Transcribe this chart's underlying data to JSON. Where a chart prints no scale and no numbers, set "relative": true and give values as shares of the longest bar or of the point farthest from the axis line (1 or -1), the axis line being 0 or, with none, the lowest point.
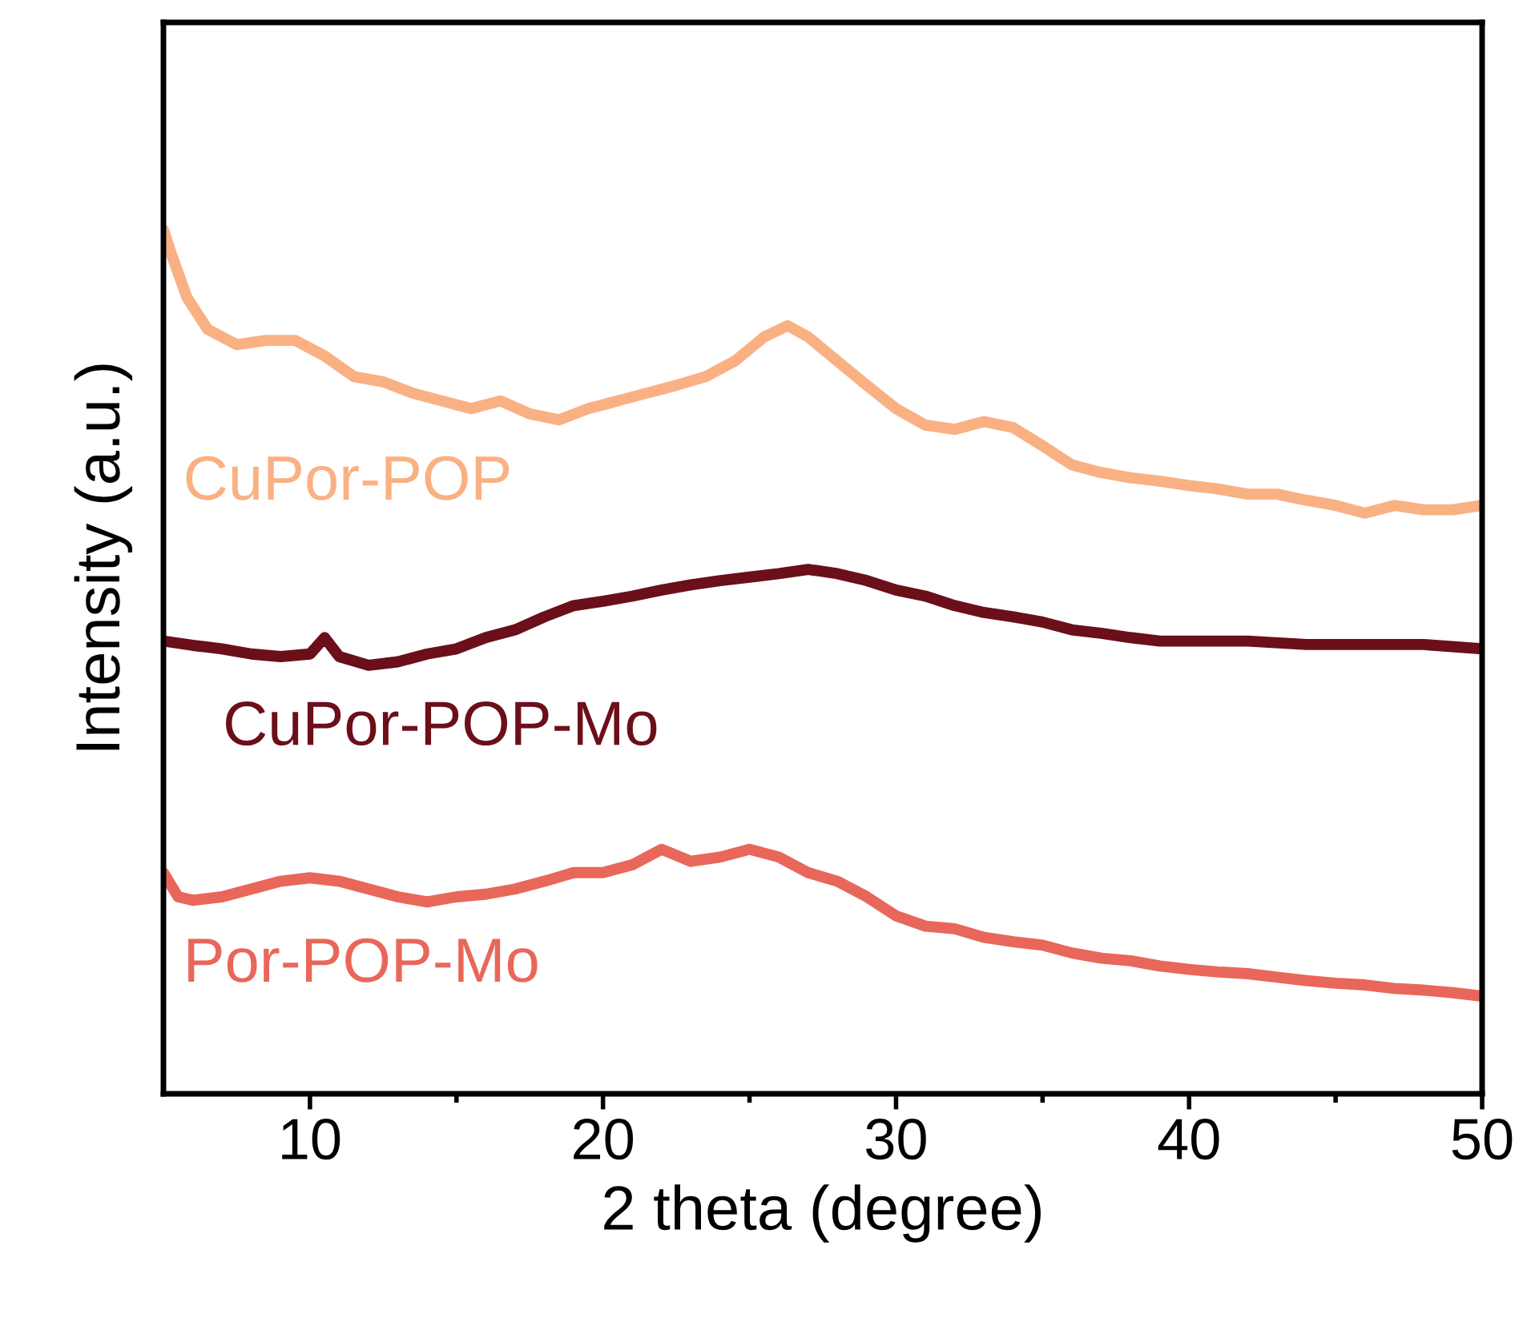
{
  "chart_data": {
    "type": "line",
    "xlabel": "2 theta (degree)",
    "ylabel": "Intensity (a.u.)",
    "relative": true,
    "xlim": [
      5,
      50
    ],
    "xticks": [
      10,
      20,
      30,
      40,
      50
    ],
    "grid": false,
    "legend": false,
    "marker": "none",
    "line_style": "solid",
    "series": [
      {
        "name": "CuPor-POP",
        "color": "#f9b183",
        "x": [
          5,
          5.3,
          5.8,
          6.5,
          7.5,
          8.5,
          9.5,
          10.5,
          11.5,
          12.5,
          13.5,
          14.5,
          15.5,
          16.5,
          17.5,
          18.5,
          19.5,
          20.5,
          21.5,
          22.5,
          23.5,
          24.5,
          25.5,
          26.3,
          27,
          28,
          29,
          30,
          31,
          32,
          33,
          34,
          35,
          36,
          37,
          38,
          39,
          40,
          41,
          42,
          43,
          44,
          45,
          46,
          47,
          48,
          49,
          50
        ],
        "values": [
          1.0,
          0.969,
          0.922,
          0.885,
          0.867,
          0.872,
          0.872,
          0.854,
          0.83,
          0.824,
          0.811,
          0.802,
          0.793,
          0.802,
          0.787,
          0.78,
          0.793,
          0.802,
          0.811,
          0.82,
          0.83,
          0.848,
          0.876,
          0.889,
          0.876,
          0.848,
          0.82,
          0.793,
          0.774,
          0.769,
          0.778,
          0.771,
          0.75,
          0.728,
          0.719,
          0.713,
          0.709,
          0.704,
          0.7,
          0.694,
          0.694,
          0.687,
          0.681,
          0.672,
          0.681,
          0.676,
          0.676,
          0.681
        ]
      },
      {
        "name": "CuPor-POP-Mo",
        "color": "#6b0f1a",
        "x": [
          5,
          6,
          7,
          8,
          9,
          10,
          10.5,
          11,
          12,
          13,
          14,
          15,
          16,
          17,
          18,
          19,
          20,
          21,
          22,
          23,
          24,
          25,
          26,
          27,
          28,
          29,
          30,
          31,
          32,
          33,
          34,
          35,
          36,
          37,
          38,
          39,
          40,
          42,
          44,
          46,
          48,
          50
        ],
        "values": [
          0.524,
          0.519,
          0.515,
          0.509,
          0.506,
          0.509,
          0.528,
          0.506,
          0.496,
          0.5,
          0.509,
          0.515,
          0.528,
          0.537,
          0.552,
          0.565,
          0.57,
          0.576,
          0.583,
          0.589,
          0.594,
          0.598,
          0.602,
          0.607,
          0.602,
          0.594,
          0.583,
          0.576,
          0.565,
          0.557,
          0.552,
          0.546,
          0.537,
          0.533,
          0.528,
          0.524,
          0.524,
          0.524,
          0.52,
          0.52,
          0.52,
          0.515
        ]
      },
      {
        "name": "Por-POP-Mo",
        "color": "#e8675a",
        "x": [
          5,
          5.5,
          6,
          7,
          8,
          9,
          10,
          11,
          12,
          13,
          14,
          15,
          16,
          17,
          18,
          19,
          20,
          21,
          22,
          23,
          24,
          25,
          26,
          27,
          28,
          29,
          30,
          31,
          32,
          33,
          34,
          35,
          36,
          37,
          38,
          39,
          40,
          41,
          42,
          43,
          44,
          45,
          46,
          47,
          48,
          49,
          50
        ],
        "values": [
          0.256,
          0.228,
          0.224,
          0.228,
          0.237,
          0.246,
          0.25,
          0.246,
          0.237,
          0.228,
          0.222,
          0.228,
          0.231,
          0.237,
          0.246,
          0.256,
          0.256,
          0.265,
          0.283,
          0.269,
          0.274,
          0.283,
          0.274,
          0.256,
          0.246,
          0.228,
          0.206,
          0.194,
          0.191,
          0.181,
          0.176,
          0.172,
          0.163,
          0.157,
          0.154,
          0.148,
          0.144,
          0.141,
          0.139,
          0.135,
          0.131,
          0.128,
          0.126,
          0.122,
          0.12,
          0.117,
          0.113
        ]
      }
    ]
  }
}
